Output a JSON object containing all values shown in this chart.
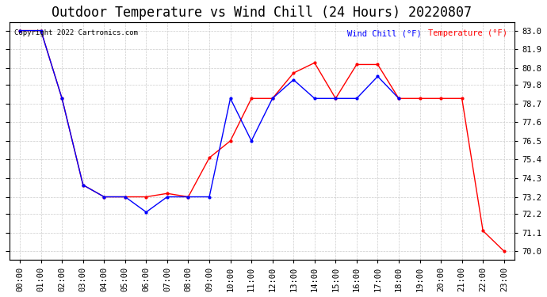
{
  "title": "Outdoor Temperature vs Wind Chill (24 Hours) 20220807",
  "copyright": "Copyright 2022 Cartronics.com",
  "legend_wind_chill": "Wind Chill (°F)",
  "legend_temperature": "Temperature (°F)",
  "xlabels": [
    "00:00",
    "01:00",
    "02:00",
    "03:00",
    "04:00",
    "05:00",
    "06:00",
    "07:00",
    "08:00",
    "09:00",
    "10:00",
    "11:00",
    "12:00",
    "13:00",
    "14:00",
    "15:00",
    "16:00",
    "17:00",
    "18:00",
    "19:00",
    "20:00",
    "21:00",
    "22:00",
    "23:00"
  ],
  "ylim": [
    69.5,
    83.5
  ],
  "yticks": [
    70.0,
    71.1,
    72.2,
    73.2,
    74.3,
    75.4,
    76.5,
    77.6,
    78.7,
    79.8,
    80.8,
    81.9,
    83.0
  ],
  "temp_x": [
    0,
    1,
    2,
    3,
    4,
    5,
    6,
    7,
    8,
    9,
    10,
    11,
    12,
    13,
    14,
    15,
    16,
    17,
    18,
    19,
    20,
    21,
    22,
    23
  ],
  "temp_y": [
    83.0,
    83.0,
    79.0,
    73.9,
    73.2,
    73.2,
    73.2,
    73.4,
    73.2,
    75.5,
    76.5,
    79.0,
    79.0,
    80.5,
    81.1,
    79.0,
    81.0,
    81.0,
    79.0,
    79.0,
    79.0,
    79.0,
    71.2,
    70.0
  ],
  "wind_x": [
    0,
    1,
    2,
    3,
    4,
    5,
    6,
    7,
    8,
    9,
    10,
    11,
    12,
    13,
    14,
    15,
    16,
    17,
    18
  ],
  "wind_y": [
    83.0,
    83.0,
    79.0,
    73.9,
    73.2,
    73.2,
    72.3,
    73.2,
    73.2,
    73.2,
    79.0,
    76.5,
    79.0,
    80.1,
    79.0,
    79.0,
    79.0,
    80.3,
    79.0
  ],
  "temp_color": "#FF0000",
  "wind_color": "#0000FF",
  "background_color": "#ffffff",
  "grid_color": "#cccccc",
  "title_fontsize": 12,
  "tick_fontsize": 7.5
}
